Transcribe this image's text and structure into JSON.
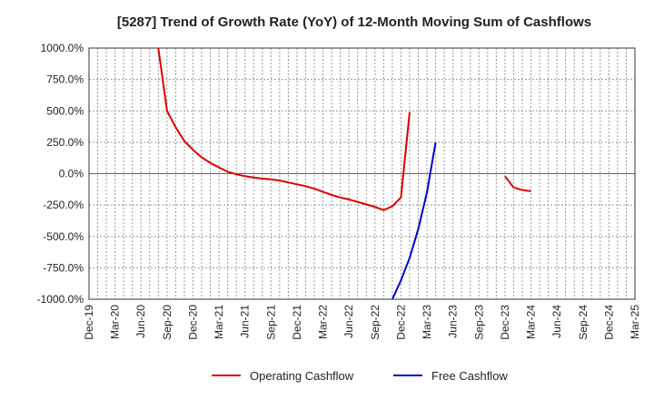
{
  "chart_data": {
    "type": "line",
    "title": "[5287]  Trend of Growth Rate (YoY) of 12-Month Moving Sum of Cashflows",
    "xlabel": "",
    "ylabel": "",
    "ylim": [
      -1000,
      1000
    ],
    "y_ticks": [
      "1000.0%",
      "750.0%",
      "500.0%",
      "250.0%",
      "0.0%",
      "-250.0%",
      "-500.0%",
      "-750.0%",
      "-1000.0%"
    ],
    "y_tick_values": [
      1000,
      750,
      500,
      250,
      0,
      -250,
      -500,
      -750,
      -1000
    ],
    "x_ticks": [
      "Dec-19",
      "Mar-20",
      "Jun-20",
      "Sep-20",
      "Dec-20",
      "Mar-21",
      "Jun-21",
      "Sep-21",
      "Dec-21",
      "Mar-22",
      "Jun-22",
      "Sep-22",
      "Dec-22",
      "Mar-23",
      "Jun-23",
      "Sep-23",
      "Dec-23",
      "Mar-24",
      "Jun-24",
      "Sep-24",
      "Dec-24",
      "Mar-25"
    ],
    "x_range": [
      "2019-12",
      "2025-03"
    ],
    "grid": true,
    "legend_position": "bottom",
    "series": [
      {
        "name": "Operating Cashflow",
        "color": "#dd0000",
        "points": [
          [
            "2020-08",
            1000
          ],
          [
            "2020-09",
            500
          ],
          [
            "2020-10",
            370
          ],
          [
            "2020-11",
            260
          ],
          [
            "2020-12",
            190
          ],
          [
            "2021-01",
            130
          ],
          [
            "2021-02",
            85
          ],
          [
            "2021-03",
            50
          ],
          [
            "2021-04",
            15
          ],
          [
            "2021-05",
            -5
          ],
          [
            "2021-06",
            -20
          ],
          [
            "2021-07",
            -30
          ],
          [
            "2021-08",
            -40
          ],
          [
            "2021-09",
            -45
          ],
          [
            "2021-10",
            -55
          ],
          [
            "2021-11",
            -70
          ],
          [
            "2021-12",
            -85
          ],
          [
            "2022-01",
            -100
          ],
          [
            "2022-02",
            -120
          ],
          [
            "2022-03",
            -145
          ],
          [
            "2022-04",
            -170
          ],
          [
            "2022-05",
            -190
          ],
          [
            "2022-06",
            -205
          ],
          [
            "2022-07",
            -225
          ],
          [
            "2022-08",
            -245
          ],
          [
            "2022-09",
            -265
          ],
          [
            "2022-10",
            -290
          ],
          [
            "2022-11",
            -260
          ],
          [
            "2022-12",
            -190
          ],
          [
            "2023-01",
            490
          ]
        ],
        "segment_2": [
          [
            "2023-12",
            -20
          ],
          [
            "2024-01",
            -110
          ],
          [
            "2024-02",
            -130
          ],
          [
            "2024-03",
            -140
          ]
        ]
      },
      {
        "name": "Free Cashflow",
        "color": "#0000cc",
        "points": [
          [
            "2022-11",
            -1000
          ],
          [
            "2022-12",
            -850
          ],
          [
            "2023-01",
            -670
          ],
          [
            "2023-02",
            -440
          ],
          [
            "2023-03",
            -150
          ],
          [
            "2023-04",
            250
          ]
        ]
      }
    ]
  }
}
